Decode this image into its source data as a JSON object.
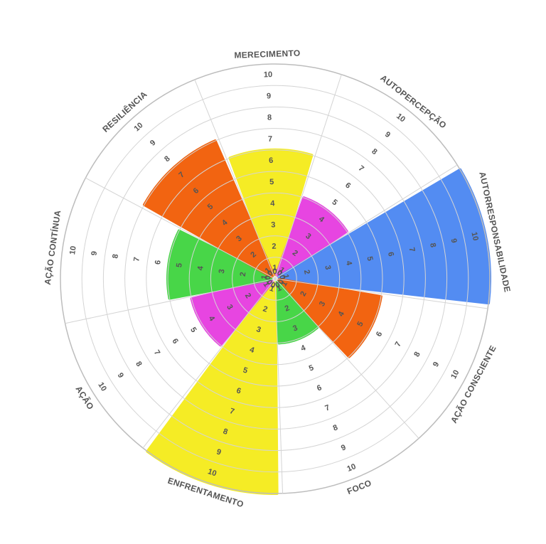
{
  "chart_data": {
    "type": "polar-area",
    "scale_max": 10,
    "tick_values": [
      0,
      1,
      2,
      3,
      4,
      5,
      6,
      7,
      8,
      9,
      10
    ],
    "categories": [
      "MERECIMENTO",
      "AUTOPERCEPÇÃO",
      "AUTORRESPONSABILIDADE",
      "AÇÃO CONSCIENTE",
      "FOCO",
      "ENFRENTAMENTO",
      "AÇÃO",
      "AÇÃO CONTÍNUA",
      "RESILIÊNCIA"
    ],
    "values": [
      6,
      4,
      10,
      5,
      3,
      10,
      4,
      5,
      7
    ],
    "colors": [
      "#f5ec1a",
      "#e63ce0",
      "#4a86f2",
      "#f25c05",
      "#3fd43f",
      "#f5ec1a",
      "#e63ce0",
      "#3fd43f",
      "#f25c05"
    ],
    "grid_color": "#d4d4d4",
    "label_color": "#555555"
  }
}
